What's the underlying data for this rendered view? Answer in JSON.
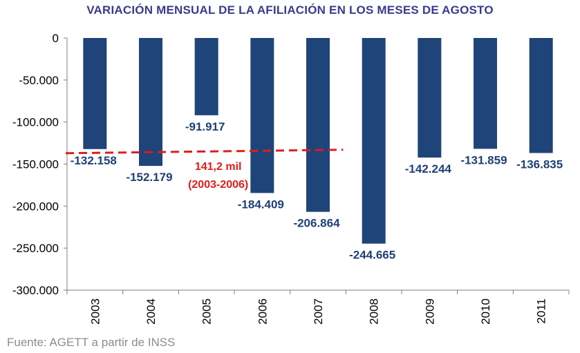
{
  "chart_data": {
    "type": "bar",
    "title": "VARIACIÓN MENSUAL DE LA AFILIACIÓN EN LOS MESES DE AGOSTO",
    "categories": [
      "2003",
      "2004",
      "2005",
      "2006",
      "2007",
      "2008",
      "2009",
      "2010",
      "2011"
    ],
    "values": [
      -132158,
      -152179,
      -91917,
      -184409,
      -206864,
      -244665,
      -142244,
      -131859,
      -136835
    ],
    "value_labels": [
      "-132.158",
      "-152.179",
      "-91.917",
      "-184.409",
      "-206.864",
      "-244.665",
      "-142.244",
      "-131.859",
      "-136.835"
    ],
    "yticks": [
      0,
      -50000,
      -100000,
      -150000,
      -200000,
      -250000,
      -300000
    ],
    "ytick_labels": [
      "0",
      "-50.000",
      "-100.000",
      "-150.000",
      "-200.000",
      "-250.000",
      "-300.000"
    ],
    "ylim": [
      -300000,
      0
    ],
    "xlabel": "",
    "ylabel": "",
    "bar_color": "#1f4479",
    "label_color": "#1f3f77",
    "reference_line": {
      "value": -141200,
      "label_line1": "141,2 mil",
      "label_line2": "(2003-2006)",
      "color": "#e31b1b",
      "style": "dashed",
      "span_categories": [
        "2003",
        "2007"
      ]
    },
    "source": "Fuente: AGETT a partir de INSS"
  }
}
